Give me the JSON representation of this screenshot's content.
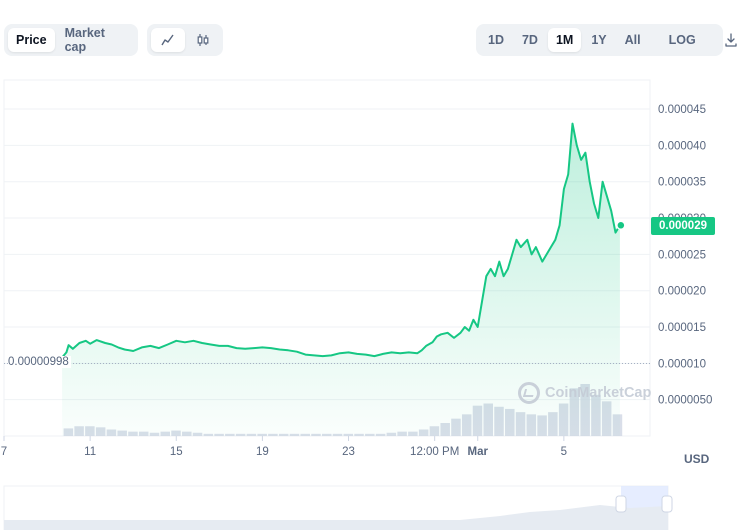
{
  "toolbar": {
    "metric_tabs": [
      {
        "label": "Price",
        "active": true
      },
      {
        "label": "Market cap",
        "active": false
      }
    ],
    "chart_type_icons": [
      "line-chart-icon",
      "candlestick-icon"
    ],
    "ranges": [
      {
        "label": "1D",
        "active": false
      },
      {
        "label": "7D",
        "active": false
      },
      {
        "label": "1M",
        "active": true
      },
      {
        "label": "1Y",
        "active": false
      },
      {
        "label": "All",
        "active": false
      }
    ],
    "log_label": "LOG",
    "download_icon": "download-icon"
  },
  "chart": {
    "current_price_label": "0.000029",
    "start_price_label": "0.00000998",
    "currency": "USD",
    "watermark": "CoinMarketCap",
    "y_tick_labels": [
      "0.000045",
      "0.000040",
      "0.000035",
      "0.000030",
      "0.000025",
      "0.000020",
      "0.000015",
      "0.000010",
      "0.0000050"
    ],
    "x_tick_labels": [
      "7",
      "11",
      "15",
      "19",
      "23",
      "12:00 PM",
      "Mar",
      "5"
    ],
    "line_color": "#16c784",
    "volume_color": "#cfd6e4"
  },
  "chart_data": {
    "type": "line",
    "x_tick_labels": [
      "7",
      "11",
      "15",
      "19",
      "23",
      "12:00 PM",
      "Mar",
      "5"
    ],
    "x_tick_positions": [
      0,
      4,
      8,
      12,
      16,
      20,
      22,
      26
    ],
    "xlim": [
      0,
      30
    ],
    "ylim": [
      0,
      4.9e-05
    ],
    "yticks": [
      4.5e-05,
      4e-05,
      3.5e-05,
      3e-05,
      2.5e-05,
      2e-05,
      1.5e-05,
      1e-05,
      5e-06
    ],
    "series": [
      {
        "points": [
          [
            2.7,
            1.08e-05
          ],
          [
            2.9,
            1.15e-05
          ],
          [
            3.0,
            1.25e-05
          ],
          [
            3.2,
            1.2e-05
          ],
          [
            3.5,
            1.28e-05
          ],
          [
            3.8,
            1.31e-05
          ],
          [
            4.0,
            1.27e-05
          ],
          [
            4.3,
            1.32e-05
          ],
          [
            4.7,
            1.28e-05
          ],
          [
            5.0,
            1.26e-05
          ],
          [
            5.3,
            1.22e-05
          ],
          [
            5.6,
            1.19e-05
          ],
          [
            6.0,
            1.17e-05
          ],
          [
            6.4,
            1.22e-05
          ],
          [
            6.8,
            1.24e-05
          ],
          [
            7.2,
            1.21e-05
          ],
          [
            7.6,
            1.26e-05
          ],
          [
            8.0,
            1.31e-05
          ],
          [
            8.4,
            1.29e-05
          ],
          [
            8.8,
            1.31e-05
          ],
          [
            9.2,
            1.28e-05
          ],
          [
            9.6,
            1.26e-05
          ],
          [
            10.0,
            1.24e-05
          ],
          [
            10.4,
            1.24e-05
          ],
          [
            10.8,
            1.21e-05
          ],
          [
            11.2,
            1.2e-05
          ],
          [
            11.6,
            1.21e-05
          ],
          [
            12.0,
            1.22e-05
          ],
          [
            12.4,
            1.21e-05
          ],
          [
            12.8,
            1.19e-05
          ],
          [
            13.2,
            1.18e-05
          ],
          [
            13.6,
            1.16e-05
          ],
          [
            14.0,
            1.12e-05
          ],
          [
            14.4,
            1.11e-05
          ],
          [
            14.8,
            1.1e-05
          ],
          [
            15.2,
            1.11e-05
          ],
          [
            15.6,
            1.14e-05
          ],
          [
            16.0,
            1.15e-05
          ],
          [
            16.4,
            1.13e-05
          ],
          [
            16.8,
            1.12e-05
          ],
          [
            17.2,
            1.1e-05
          ],
          [
            17.6,
            1.13e-05
          ],
          [
            18.0,
            1.15e-05
          ],
          [
            18.4,
            1.14e-05
          ],
          [
            18.8,
            1.15e-05
          ],
          [
            19.2,
            1.14e-05
          ],
          [
            19.4,
            1.18e-05
          ],
          [
            19.6,
            1.24e-05
          ],
          [
            19.9,
            1.29e-05
          ],
          [
            20.1,
            1.37e-05
          ],
          [
            20.3,
            1.4e-05
          ],
          [
            20.6,
            1.42e-05
          ],
          [
            20.9,
            1.35e-05
          ],
          [
            21.2,
            1.42e-05
          ],
          [
            21.4,
            1.5e-05
          ],
          [
            21.6,
            1.45e-05
          ],
          [
            21.8,
            1.6e-05
          ],
          [
            22.0,
            1.5e-05
          ],
          [
            22.2,
            1.85e-05
          ],
          [
            22.4,
            2.2e-05
          ],
          [
            22.6,
            2.3e-05
          ],
          [
            22.8,
            2.2e-05
          ],
          [
            23.0,
            2.4e-05
          ],
          [
            23.2,
            2.2e-05
          ],
          [
            23.4,
            2.3e-05
          ],
          [
            23.6,
            2.5e-05
          ],
          [
            23.8,
            2.7e-05
          ],
          [
            24.0,
            2.6e-05
          ],
          [
            24.3,
            2.7e-05
          ],
          [
            24.5,
            2.5e-05
          ],
          [
            24.7,
            2.6e-05
          ],
          [
            25.0,
            2.4e-05
          ],
          [
            25.2,
            2.5e-05
          ],
          [
            25.4,
            2.6e-05
          ],
          [
            25.6,
            2.7e-05
          ],
          [
            25.8,
            2.9e-05
          ],
          [
            26.0,
            3.4e-05
          ],
          [
            26.2,
            3.6e-05
          ],
          [
            26.4,
            4.3e-05
          ],
          [
            26.6,
            4e-05
          ],
          [
            26.8,
            3.8e-05
          ],
          [
            27.0,
            3.9e-05
          ],
          [
            27.2,
            3.5e-05
          ],
          [
            27.4,
            3.2e-05
          ],
          [
            27.6,
            3e-05
          ],
          [
            27.8,
            3.5e-05
          ],
          [
            28.0,
            3.3e-05
          ],
          [
            28.2,
            3.1e-05
          ],
          [
            28.4,
            2.8e-05
          ],
          [
            28.6,
            2.9e-05
          ]
        ]
      }
    ],
    "volume": [
      [
        3.0,
        0.35
      ],
      [
        3.5,
        0.45
      ],
      [
        4.0,
        0.45
      ],
      [
        4.5,
        0.4
      ],
      [
        5.0,
        0.3
      ],
      [
        5.5,
        0.25
      ],
      [
        6.0,
        0.2
      ],
      [
        6.5,
        0.2
      ],
      [
        7.0,
        0.15
      ],
      [
        7.5,
        0.2
      ],
      [
        8.0,
        0.25
      ],
      [
        8.5,
        0.2
      ],
      [
        9.0,
        0.15
      ],
      [
        9.5,
        0.1
      ],
      [
        10.0,
        0.1
      ],
      [
        10.5,
        0.1
      ],
      [
        11.0,
        0.1
      ],
      [
        11.5,
        0.1
      ],
      [
        12.0,
        0.1
      ],
      [
        12.5,
        0.1
      ],
      [
        13.0,
        0.1
      ],
      [
        13.5,
        0.1
      ],
      [
        14.0,
        0.1
      ],
      [
        14.5,
        0.1
      ],
      [
        15.0,
        0.1
      ],
      [
        15.5,
        0.1
      ],
      [
        16.0,
        0.1
      ],
      [
        16.5,
        0.1
      ],
      [
        17.0,
        0.1
      ],
      [
        17.5,
        0.1
      ],
      [
        18.0,
        0.15
      ],
      [
        18.5,
        0.2
      ],
      [
        19.0,
        0.2
      ],
      [
        19.5,
        0.3
      ],
      [
        20.0,
        0.45
      ],
      [
        20.5,
        0.6
      ],
      [
        21.0,
        0.8
      ],
      [
        21.5,
        1.0
      ],
      [
        22.0,
        1.4
      ],
      [
        22.5,
        1.5
      ],
      [
        23.0,
        1.35
      ],
      [
        23.5,
        1.25
      ],
      [
        24.0,
        1.1
      ],
      [
        24.5,
        1.0
      ],
      [
        25.0,
        0.95
      ],
      [
        25.5,
        1.1
      ],
      [
        26.0,
        1.5
      ],
      [
        26.5,
        2.2
      ],
      [
        27.0,
        2.4
      ],
      [
        27.5,
        1.9
      ],
      [
        28.0,
        1.6
      ],
      [
        28.5,
        1.0
      ]
    ]
  }
}
